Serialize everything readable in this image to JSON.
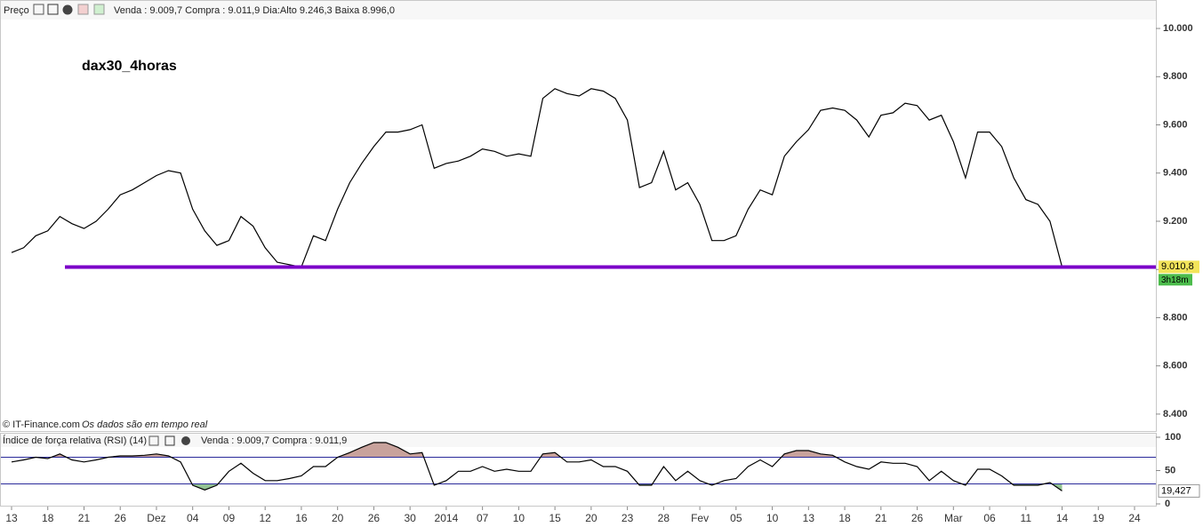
{
  "chart_data": [
    {
      "type": "line",
      "header": "Preço",
      "quote": "Venda : 9.009,7 Compra : 9.011,9 Dia:Alto 9.246,3 Baixa 8.996,0",
      "title": "dax30_4horas",
      "source": "© IT-Finance.com",
      "note": "Os dados são em tempo real",
      "color": "#000000",
      "values": [
        9070,
        9090,
        9140,
        9160,
        9220,
        9190,
        9170,
        9200,
        9250,
        9310,
        9330,
        9360,
        9390,
        9410,
        9400,
        9250,
        9160,
        9100,
        9120,
        9220,
        9180,
        9090,
        9030,
        9020,
        9010,
        9140,
        9120,
        9250,
        9360,
        9440,
        9510,
        9570,
        9570,
        9580,
        9600,
        9420,
        9440,
        9450,
        9470,
        9500,
        9490,
        9470,
        9480,
        9470,
        9710,
        9750,
        9730,
        9720,
        9750,
        9740,
        9710,
        9620,
        9340,
        9360,
        9490,
        9330,
        9360,
        9270,
        9120,
        9120,
        9140,
        9250,
        9330,
        9310,
        9470,
        9530,
        9580,
        9660,
        9670,
        9660,
        9620,
        9550,
        9640,
        9650,
        9690,
        9680,
        9620,
        9640,
        9530,
        9380,
        9570,
        9570,
        9510,
        9380,
        9290,
        9270,
        9200,
        9010.8,
        null,
        null,
        null,
        null,
        null,
        null,
        null,
        null
      ],
      "last_value_label": "9.010,8",
      "time_left": "3h18m",
      "support_level": 9010,
      "support_color": "#7b00c8",
      "ylim": [
        8326,
        10037
      ],
      "yticks": [
        {
          "value": 8400,
          "label": "8.400"
        },
        {
          "value": 8600,
          "label": "8.600"
        },
        {
          "value": 8800,
          "label": "8.800"
        },
        {
          "value": 9000,
          "label": "9.000"
        },
        {
          "value": 9200,
          "label": "9.200"
        },
        {
          "value": 9400,
          "label": "9.400"
        },
        {
          "value": 9600,
          "label": "9.600"
        },
        {
          "value": 9800,
          "label": "9.800"
        },
        {
          "value": 10000,
          "label": "10.000"
        }
      ]
    },
    {
      "type": "line",
      "title": "Índice de força relativa (RSI) (14)",
      "quote": "Venda : 9.009,7 Compra : 9.011,9",
      "color": "#000000",
      "categories": [
        "13",
        null,
        null,
        "18",
        null,
        null,
        "21",
        null,
        null,
        "26",
        null,
        null,
        "Dez",
        null,
        null,
        "04",
        null,
        null,
        "09",
        null,
        null,
        "12",
        null,
        null,
        "16",
        null,
        null,
        "20",
        null,
        null,
        "26",
        null,
        null,
        "30",
        null,
        null,
        "2014",
        null,
        null,
        "07",
        null,
        null,
        "10",
        null,
        null,
        "15",
        null,
        null,
        "20",
        null,
        null,
        "23",
        null,
        null,
        "28",
        null,
        null,
        "Fev",
        null,
        null,
        "05",
        null,
        null,
        "10",
        null,
        null,
        "13",
        null,
        null,
        "18",
        null,
        null,
        "21",
        null,
        null,
        "26",
        null,
        null,
        "Mar",
        null,
        null,
        "06",
        null,
        null,
        "11",
        null,
        null,
        "14",
        null,
        null,
        "19",
        null,
        null,
        "24",
        null,
        null
      ],
      "values": [
        63,
        66,
        70,
        68,
        75,
        66,
        63,
        66,
        70,
        72,
        72,
        73,
        75,
        72,
        63,
        28,
        21,
        28,
        49,
        61,
        46,
        35,
        35,
        38,
        42,
        56,
        56,
        70,
        77,
        85,
        92,
        92,
        85,
        75,
        77,
        28,
        35,
        49,
        49,
        56,
        49,
        52,
        49,
        49,
        75,
        77,
        63,
        63,
        66,
        56,
        56,
        49,
        28,
        28,
        56,
        35,
        49,
        35,
        28,
        35,
        38,
        56,
        66,
        56,
        75,
        80,
        80,
        75,
        73,
        63,
        56,
        52,
        63,
        61,
        61,
        56,
        35,
        49,
        35,
        28,
        52,
        52,
        42,
        28,
        28,
        28,
        32,
        19.427,
        null,
        null,
        null,
        null,
        null,
        null,
        null,
        null
      ],
      "last_value_label": "19,427",
      "levels": [
        30,
        70
      ],
      "level_color": "#2a2a9a",
      "overbought_fill": "#c8a29c",
      "oversold_fill": "#93c293",
      "ylim": [
        0,
        100
      ],
      "yticks": [
        0,
        50,
        100
      ]
    }
  ]
}
